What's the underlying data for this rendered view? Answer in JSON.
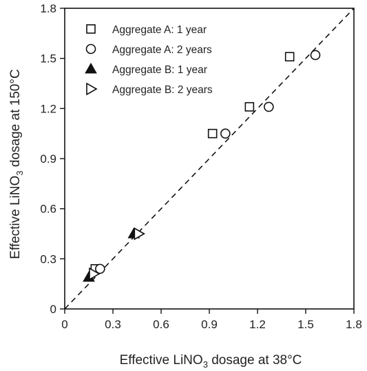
{
  "chart_data": {
    "type": "scatter",
    "title": "",
    "xlabel": {
      "prefix": "Effective LiNO",
      "sub": "3",
      "suffix": " dosage at 38°C"
    },
    "ylabel": {
      "prefix": "Effective LiNO",
      "sub": "3",
      "suffix": " dosage at 150°C"
    },
    "xlim": [
      0,
      1.8
    ],
    "ylim": [
      0,
      1.8
    ],
    "xticks": [
      "0",
      "0.3",
      "0.6",
      "0.9",
      "1.2",
      "1.5",
      "1.8"
    ],
    "yticks": [
      "0",
      "0.3",
      "0.6",
      "0.9",
      "1.2",
      "1.5",
      "1.8"
    ],
    "grid": false,
    "legend_position": "top-left",
    "reference_line": {
      "style": "dashed",
      "x": [
        0,
        1.8
      ],
      "y": [
        0,
        1.8
      ]
    },
    "series": [
      {
        "name": "Aggregate A: 1 year",
        "marker": "square-open",
        "x": [
          0.19,
          0.92,
          1.15,
          1.4
        ],
        "y": [
          0.24,
          1.05,
          1.21,
          1.51
        ]
      },
      {
        "name": "Aggregate A: 2 years",
        "marker": "circle-open",
        "x": [
          0.22,
          1.0,
          1.27,
          1.56
        ],
        "y": [
          0.24,
          1.05,
          1.21,
          1.52
        ]
      },
      {
        "name": "Aggregate B: 1 year",
        "marker": "triangle-up-filled",
        "x": [
          0.15,
          0.43
        ],
        "y": [
          0.19,
          0.45
        ]
      },
      {
        "name": "Aggregate B: 2 years",
        "marker": "triangle-right-open",
        "x": [
          0.18,
          0.46
        ],
        "y": [
          0.21,
          0.45
        ]
      }
    ]
  }
}
